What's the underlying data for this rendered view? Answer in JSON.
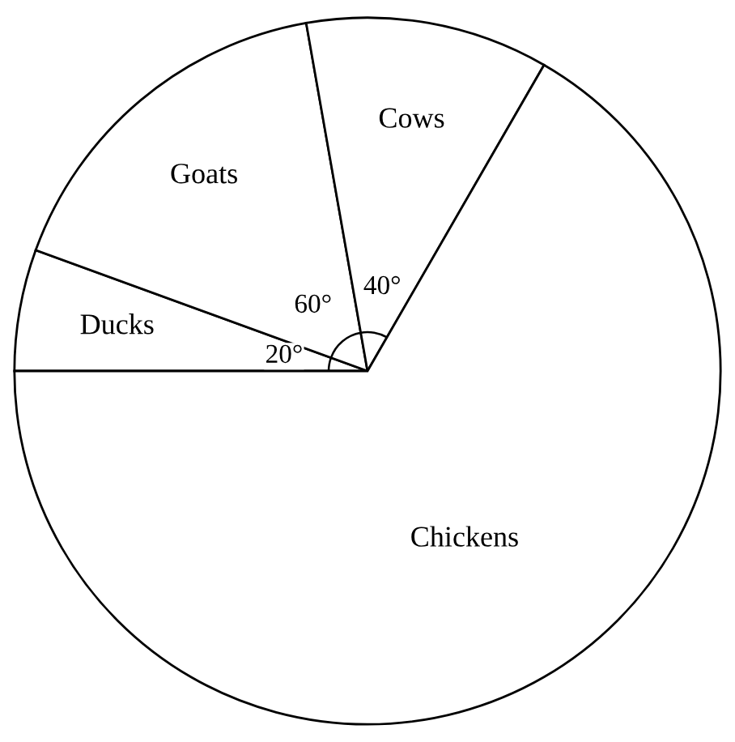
{
  "chart_data": {
    "type": "pie",
    "categories": [
      "Ducks",
      "Goats",
      "Cows",
      "Chickens"
    ],
    "values": [
      20,
      60,
      40,
      240
    ],
    "colors": [
      "#ffffff",
      "#ffffff",
      "#ffffff",
      "#ffffff"
    ],
    "value_labels": [
      "20°",
      "60°",
      "40°",
      null
    ]
  }
}
